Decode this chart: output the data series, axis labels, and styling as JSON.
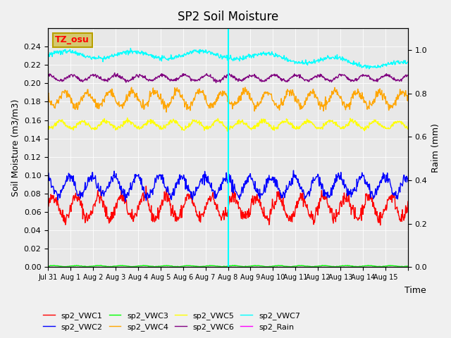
{
  "title": "SP2 Soil Moisture",
  "xlabel": "Time",
  "ylabel_left": "Soil Moisture (m3/m3)",
  "ylabel_right": "Raim (mm)",
  "ylim_left": [
    0.0,
    0.26
  ],
  "ylim_right": [
    0.0,
    1.1
  ],
  "yticks_left": [
    0.0,
    0.02,
    0.04,
    0.06,
    0.08,
    0.1,
    0.12,
    0.14,
    0.16,
    0.18,
    0.2,
    0.22,
    0.24
  ],
  "yticks_right": [
    0.0,
    0.2,
    0.4,
    0.6,
    0.8,
    1.0
  ],
  "bg_color": "#e8e8e8",
  "tz_label": "TZ_osu",
  "tz_bg": "#d4c870",
  "tz_border": "#b8a000",
  "vline_x_day": 8.0,
  "vline_color": "cyan",
  "series_names": [
    "sp2_VWC1",
    "sp2_VWC2",
    "sp2_VWC3",
    "sp2_VWC4",
    "sp2_VWC5",
    "sp2_VWC6",
    "sp2_VWC7"
  ],
  "series_colors": [
    "red",
    "blue",
    "lime",
    "orange",
    "yellow",
    "purple",
    "cyan"
  ],
  "series_base": [
    0.065,
    0.088,
    0.001,
    0.183,
    0.155,
    0.206,
    0.231
  ],
  "series_amp": [
    0.012,
    0.01,
    0.0005,
    0.008,
    0.004,
    0.003,
    0.004
  ],
  "series_period": [
    1.0,
    1.0,
    1.0,
    1.0,
    1.0,
    1.0,
    3.0
  ],
  "series_offset": [
    0.0,
    0.3,
    0.0,
    0.5,
    0.7,
    0.2,
    0.0
  ],
  "rain_color": "magenta",
  "n_days": 16,
  "xtick_positions": [
    0,
    1,
    2,
    3,
    4,
    5,
    6,
    7,
    8,
    9,
    10,
    11,
    12,
    13,
    14,
    15,
    16
  ],
  "xtick_labels": [
    "Jul 31",
    "Aug 1",
    "Aug 2",
    "Aug 3",
    "Aug 4",
    "Aug 5",
    "Aug 6",
    "Aug 7",
    "Aug 8",
    "Aug 9",
    "Aug 10",
    "Aug 11",
    "Aug 12",
    "Aug 13",
    "Aug 14",
    "Aug 15",
    ""
  ]
}
